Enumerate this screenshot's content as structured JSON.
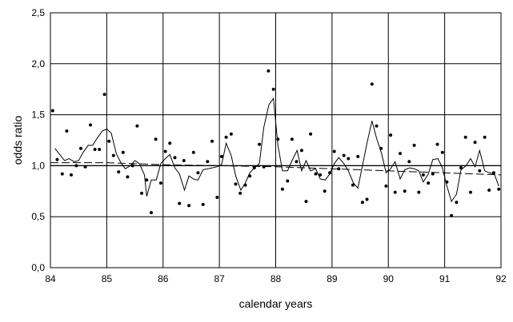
{
  "chart_data": {
    "type": "scatter",
    "title": "",
    "xlabel": "calendar years",
    "ylabel": "odds ratio",
    "xlim": [
      84,
      92
    ],
    "ylim": [
      0,
      2.5
    ],
    "x_ticks": [
      "84",
      "85",
      "86",
      "87",
      "88",
      "89",
      "90",
      "91",
      "92"
    ],
    "y_ticks": [
      "0,0",
      "0,5",
      "1,0",
      "1,5",
      "2,0",
      "2,5"
    ],
    "grid": true,
    "legend": "none",
    "reference_line": 1.0,
    "series": [
      {
        "type": "scatter",
        "points": [
          [
            84.04,
            1.54
          ],
          [
            84.12,
            1.06
          ],
          [
            84.21,
            0.92
          ],
          [
            84.29,
            1.34
          ],
          [
            84.37,
            0.91
          ],
          [
            84.46,
            1.0
          ],
          [
            84.54,
            1.17
          ],
          [
            84.62,
            0.99
          ],
          [
            84.71,
            1.4
          ],
          [
            84.79,
            1.16
          ],
          [
            84.87,
            1.16
          ],
          [
            84.96,
            1.7
          ],
          [
            85.04,
            1.24
          ],
          [
            85.12,
            1.1
          ],
          [
            85.21,
            0.94
          ],
          [
            85.29,
            1.13
          ],
          [
            85.37,
            0.89
          ],
          [
            85.46,
            1.0
          ],
          [
            85.54,
            1.39
          ],
          [
            85.62,
            0.73
          ],
          [
            85.71,
            0.86
          ],
          [
            85.79,
            0.54
          ],
          [
            85.87,
            1.26
          ],
          [
            85.96,
            0.83
          ],
          [
            86.04,
            1.14
          ],
          [
            86.12,
            1.22
          ],
          [
            86.21,
            1.08
          ],
          [
            86.29,
            0.63
          ],
          [
            86.37,
            1.05
          ],
          [
            86.46,
            0.61
          ],
          [
            86.54,
            1.13
          ],
          [
            86.62,
            0.93
          ],
          [
            86.71,
            0.62
          ],
          [
            86.79,
            1.04
          ],
          [
            86.87,
            1.24
          ],
          [
            86.96,
            0.69
          ],
          [
            87.04,
            1.09
          ],
          [
            87.12,
            1.28
          ],
          [
            87.21,
            1.31
          ],
          [
            87.29,
            0.82
          ],
          [
            87.37,
            0.73
          ],
          [
            87.46,
            0.81
          ],
          [
            87.54,
            0.9
          ],
          [
            87.62,
            0.98
          ],
          [
            87.71,
            1.21
          ],
          [
            87.79,
            0.99
          ],
          [
            87.87,
            1.93
          ],
          [
            87.96,
            1.75
          ],
          [
            88.04,
            1.26
          ],
          [
            88.12,
            0.77
          ],
          [
            88.21,
            0.85
          ],
          [
            88.29,
            1.26
          ],
          [
            88.37,
            1.04
          ],
          [
            88.46,
            1.15
          ],
          [
            88.54,
            0.65
          ],
          [
            88.62,
            1.31
          ],
          [
            88.71,
            0.92
          ],
          [
            88.79,
            0.91
          ],
          [
            88.87,
            0.75
          ],
          [
            88.96,
            0.93
          ],
          [
            89.04,
            1.14
          ],
          [
            89.12,
            0.97
          ],
          [
            89.21,
            1.1
          ],
          [
            89.29,
            1.07
          ],
          [
            89.37,
            0.81
          ],
          [
            89.46,
            1.09
          ],
          [
            89.54,
            0.64
          ],
          [
            89.62,
            0.67
          ],
          [
            89.71,
            1.8
          ],
          [
            89.79,
            1.39
          ],
          [
            89.87,
            1.17
          ],
          [
            89.96,
            0.8
          ],
          [
            90.04,
            1.3
          ],
          [
            90.12,
            0.74
          ],
          [
            90.21,
            1.12
          ],
          [
            90.29,
            0.75
          ],
          [
            90.37,
            1.04
          ],
          [
            90.46,
            1.2
          ],
          [
            90.54,
            0.74
          ],
          [
            90.62,
            0.91
          ],
          [
            90.71,
            0.83
          ],
          [
            90.79,
            0.92
          ],
          [
            90.87,
            1.21
          ],
          [
            90.96,
            1.13
          ],
          [
            91.04,
            0.84
          ],
          [
            91.12,
            0.51
          ],
          [
            91.21,
            0.64
          ],
          [
            91.29,
            0.98
          ],
          [
            91.37,
            1.28
          ],
          [
            91.46,
            0.74
          ],
          [
            91.54,
            1.23
          ],
          [
            91.62,
            0.95
          ],
          [
            91.71,
            1.28
          ],
          [
            91.79,
            0.76
          ],
          [
            91.87,
            0.93
          ],
          [
            91.96,
            0.77
          ]
        ]
      },
      {
        "type": "line",
        "style": "solid",
        "points": [
          [
            84.08,
            1.17
          ],
          [
            84.25,
            1.05
          ],
          [
            84.33,
            1.07
          ],
          [
            84.42,
            1.04
          ],
          [
            84.5,
            1.05
          ],
          [
            84.58,
            1.13
          ],
          [
            84.67,
            1.2
          ],
          [
            84.75,
            1.2
          ],
          [
            84.83,
            1.27
          ],
          [
            84.92,
            1.34
          ],
          [
            85.0,
            1.36
          ],
          [
            85.08,
            1.32
          ],
          [
            85.17,
            1.12
          ],
          [
            85.25,
            1.03
          ],
          [
            85.33,
            0.97
          ],
          [
            85.42,
            1.0
          ],
          [
            85.5,
            1.05
          ],
          [
            85.58,
            1.02
          ],
          [
            85.67,
            0.91
          ],
          [
            85.71,
            0.7
          ],
          [
            85.79,
            0.86
          ],
          [
            85.88,
            0.86
          ],
          [
            85.96,
            1.02
          ],
          [
            86.04,
            1.07
          ],
          [
            86.12,
            1.11
          ],
          [
            86.21,
            0.98
          ],
          [
            86.29,
            0.92
          ],
          [
            86.38,
            0.76
          ],
          [
            86.46,
            0.9
          ],
          [
            86.54,
            0.87
          ],
          [
            86.62,
            0.86
          ],
          [
            86.71,
            0.96
          ],
          [
            86.79,
            0.97
          ],
          [
            86.88,
            0.98
          ],
          [
            86.96,
            0.99
          ],
          [
            87.04,
            1.01
          ],
          [
            87.12,
            1.22
          ],
          [
            87.21,
            1.1
          ],
          [
            87.29,
            0.9
          ],
          [
            87.38,
            0.76
          ],
          [
            87.46,
            0.83
          ],
          [
            87.54,
            0.93
          ],
          [
            87.62,
            0.98
          ],
          [
            87.71,
            1.02
          ],
          [
            87.79,
            1.38
          ],
          [
            87.88,
            1.6
          ],
          [
            87.96,
            1.66
          ],
          [
            88.04,
            1.2
          ],
          [
            88.12,
            0.95
          ],
          [
            88.21,
            0.95
          ],
          [
            88.29,
            1.05
          ],
          [
            88.38,
            1.15
          ],
          [
            88.46,
            0.95
          ],
          [
            88.54,
            1.05
          ],
          [
            88.62,
            0.95
          ],
          [
            88.71,
            0.97
          ],
          [
            88.79,
            0.87
          ],
          [
            88.88,
            0.86
          ],
          [
            88.96,
            0.92
          ],
          [
            89.04,
            1.02
          ],
          [
            89.12,
            1.08
          ],
          [
            89.21,
            1.02
          ],
          [
            89.29,
            0.95
          ],
          [
            89.38,
            0.83
          ],
          [
            89.46,
            0.78
          ],
          [
            89.54,
            1.0
          ],
          [
            89.62,
            1.22
          ],
          [
            89.71,
            1.44
          ],
          [
            89.79,
            1.27
          ],
          [
            89.88,
            1.12
          ],
          [
            89.96,
            0.93
          ],
          [
            90.04,
            0.97
          ],
          [
            90.12,
            1.04
          ],
          [
            90.21,
            0.87
          ],
          [
            90.29,
            0.96
          ],
          [
            90.38,
            0.98
          ],
          [
            90.46,
            0.97
          ],
          [
            90.54,
            0.95
          ],
          [
            90.62,
            0.84
          ],
          [
            90.71,
            0.92
          ],
          [
            90.79,
            1.06
          ],
          [
            90.88,
            1.07
          ],
          [
            90.96,
            0.98
          ],
          [
            91.04,
            0.8
          ],
          [
            91.12,
            0.65
          ],
          [
            91.21,
            0.72
          ],
          [
            91.29,
            0.96
          ],
          [
            91.38,
            1.0
          ],
          [
            91.46,
            1.07
          ],
          [
            91.54,
            0.99
          ],
          [
            91.62,
            1.15
          ],
          [
            91.71,
            0.95
          ],
          [
            91.79,
            0.93
          ],
          [
            91.88,
            0.92
          ],
          [
            91.96,
            0.8
          ]
        ]
      },
      {
        "type": "line",
        "style": "dashed",
        "points": [
          [
            84.0,
            1.03
          ],
          [
            85.0,
            1.03
          ],
          [
            86.0,
            1.01
          ],
          [
            87.0,
            1.0
          ],
          [
            88.0,
            0.99
          ],
          [
            89.0,
            0.97
          ],
          [
            90.0,
            0.95
          ],
          [
            91.0,
            0.93
          ],
          [
            92.0,
            0.91
          ]
        ]
      }
    ]
  }
}
